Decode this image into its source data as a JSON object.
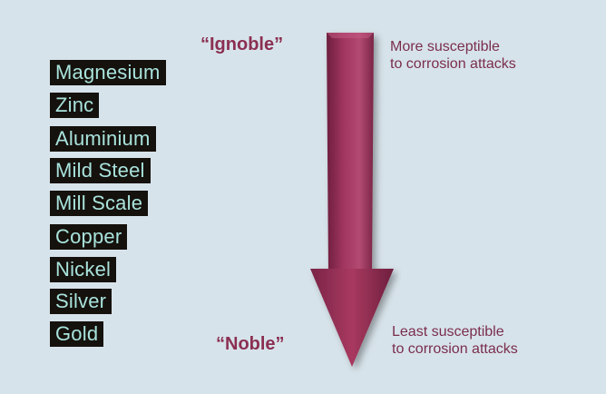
{
  "metals": [
    {
      "label": "Magnesium"
    },
    {
      "label": "Zinc"
    },
    {
      "label": "Aluminium"
    },
    {
      "label": "Mild Steel"
    },
    {
      "label": "Mill Scale"
    },
    {
      "label": "Copper"
    },
    {
      "label": "Nickel"
    },
    {
      "label": "Silver"
    },
    {
      "label": "Gold"
    }
  ],
  "top_label": "“Ignoble”",
  "bottom_label": "“Noble”",
  "top_note": {
    "line1": "More susceptible",
    "line2": "to corrosion attacks"
  },
  "bottom_note": {
    "line1": "Least susceptible",
    "line2": "to corrosion attacks"
  },
  "colors": {
    "background": "#d7e3ea",
    "label_box": "#15110d",
    "label_text": "#a9e3dc",
    "arrow": "#a0355f",
    "accent_text": "#8b2f52"
  }
}
